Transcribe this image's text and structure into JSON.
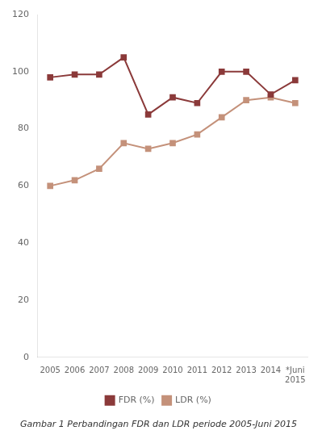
{
  "chart_data": {
    "type": "line",
    "title": "Gambar 1 Perbandingan FDR dan LDR periode 2005-Juni 2015",
    "categories": [
      "2005",
      "2006",
      "2007",
      "2008",
      "2009",
      "2010",
      "2011",
      "2012",
      "2013",
      "2014",
      "*Juni\n2015"
    ],
    "series": [
      {
        "name": "FDR (%)",
        "color": "#8B3A3A",
        "marker": "square",
        "values": [
          98,
          99,
          99,
          105,
          85,
          91,
          89,
          100,
          100,
          92,
          97
        ]
      },
      {
        "name": "LDR (%)",
        "color": "#C4917A",
        "marker": "square",
        "values": [
          60,
          62,
          66,
          75,
          73,
          75,
          78,
          84,
          90,
          91,
          89
        ]
      }
    ],
    "ylim": [
      0,
      120
    ],
    "yticks": [
      0,
      20,
      40,
      60,
      80,
      100,
      120
    ],
    "grid": false,
    "legend": "bottom"
  }
}
